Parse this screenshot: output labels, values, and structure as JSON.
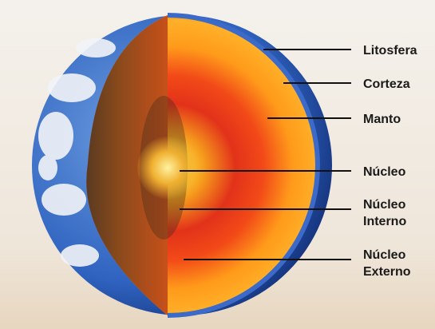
{
  "labels": [
    [
      "Litosfera"
    ],
    [
      "Corteza"
    ],
    [
      "Manto"
    ],
    [
      "Núcleo"
    ],
    [
      "Núcleo",
      "Interno"
    ],
    [
      "Núcleo",
      "Externo"
    ]
  ]
}
